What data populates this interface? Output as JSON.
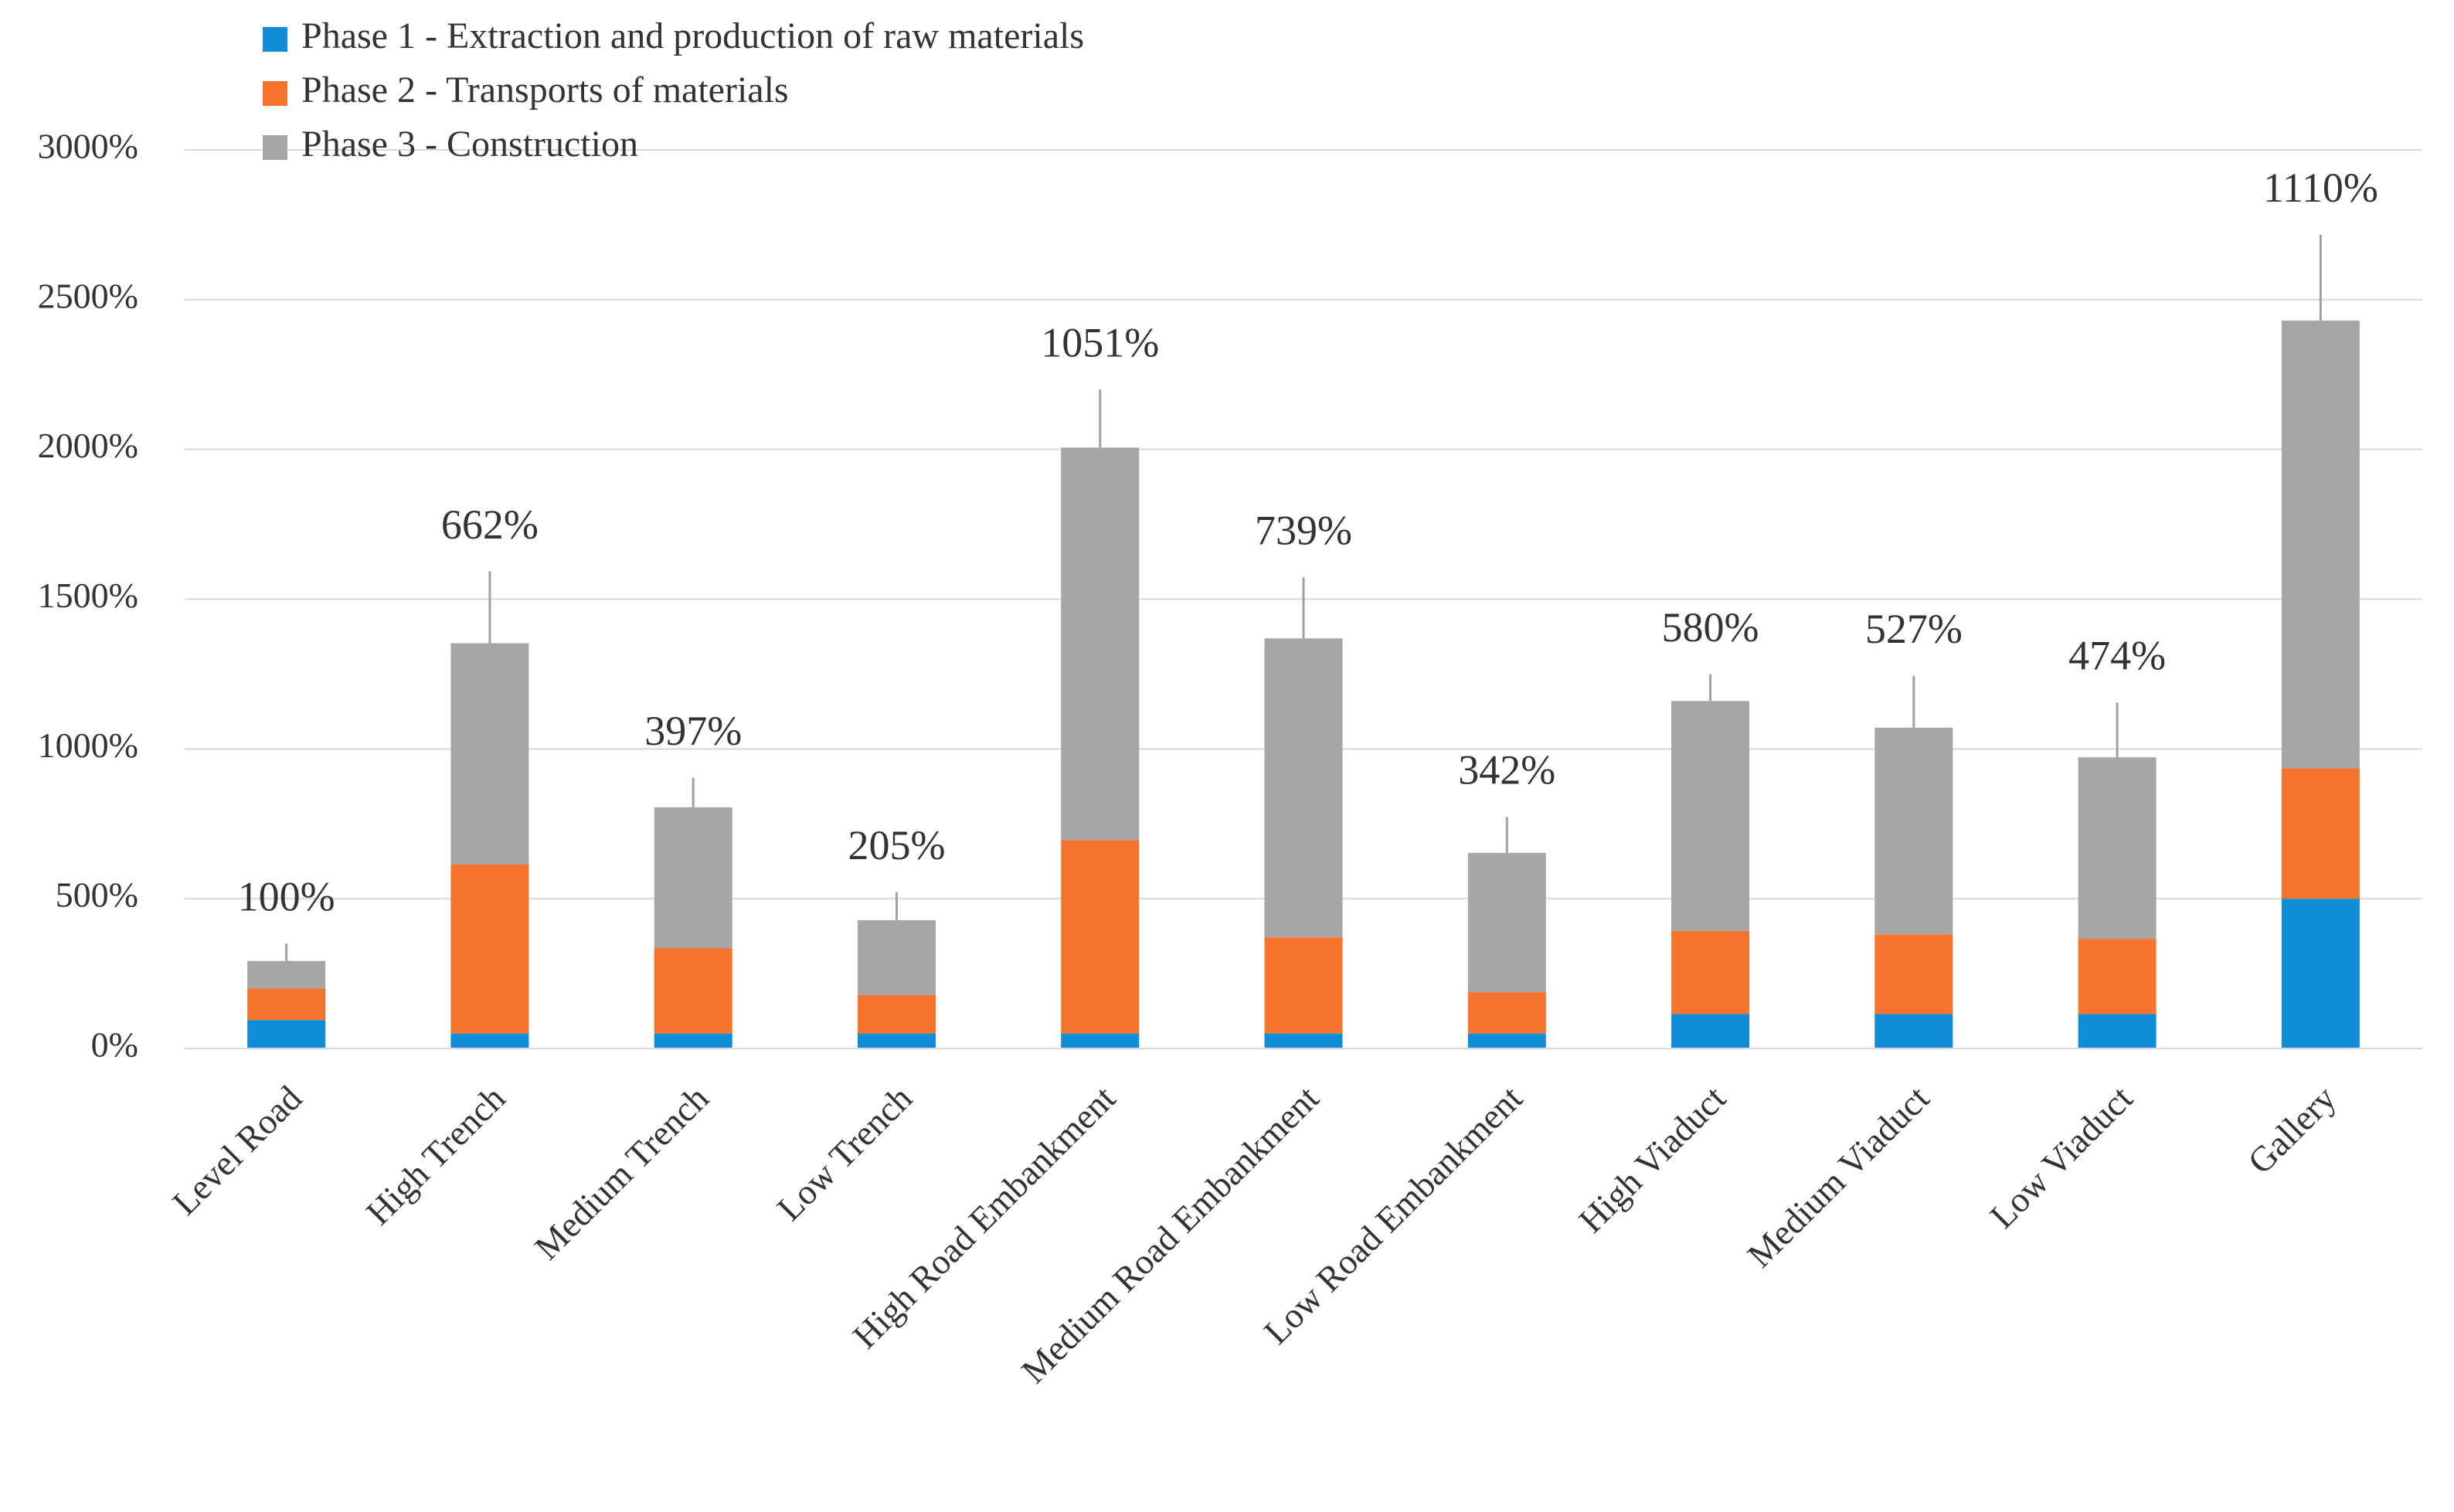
{
  "chart_data": {
    "type": "stacked_bar",
    "categories": [
      "Level Road",
      "High Trench",
      "Medium Trench",
      "Low Trench",
      "High Road Embankment",
      "Medium Road Embankment",
      "Low Road Embankment",
      "High Viaduct",
      "Medium Viaduct",
      "Low Viaduct",
      "Gallery"
    ],
    "series": [
      {
        "name": "Phase 1 - Extraction and production of raw materials",
        "color": "#118cd6",
        "values": [
          95,
          50,
          50,
          50,
          50,
          50,
          50,
          115,
          115,
          115,
          500
        ]
      },
      {
        "name": "Phase 2 - Transports of materials",
        "color": "#f6742b",
        "values": [
          105,
          565,
          284,
          128,
          645,
          321,
          138,
          277,
          266,
          251,
          435
        ]
      },
      {
        "name": "Phase 3 - Construction",
        "color": "#a6a6a6",
        "values": [
          92,
          738,
          471,
          250,
          1311,
          998,
          465,
          768,
          690,
          606,
          1495
        ],
        "errors": [
          58,
          240,
          99,
          94,
          194,
          204,
          120,
          89,
          173,
          183,
          287
        ]
      }
    ],
    "annotations": [
      "100%",
      "662%",
      "397%",
      "205%",
      "1051%",
      "739%",
      "342%",
      "580%",
      "527%",
      "474%",
      "1110%"
    ],
    "ylim": [
      0,
      3000
    ],
    "yticks": [
      {
        "value": 0,
        "label": "0%"
      },
      {
        "value": 500,
        "label": "500%"
      },
      {
        "value": 1000,
        "label": "1000%"
      },
      {
        "value": 1500,
        "label": "1500%"
      },
      {
        "value": 2000,
        "label": "2000%"
      },
      {
        "value": 2500,
        "label": "2500%"
      },
      {
        "value": 3000,
        "label": "3000%"
      }
    ],
    "grid": true,
    "legend": "top-left"
  }
}
